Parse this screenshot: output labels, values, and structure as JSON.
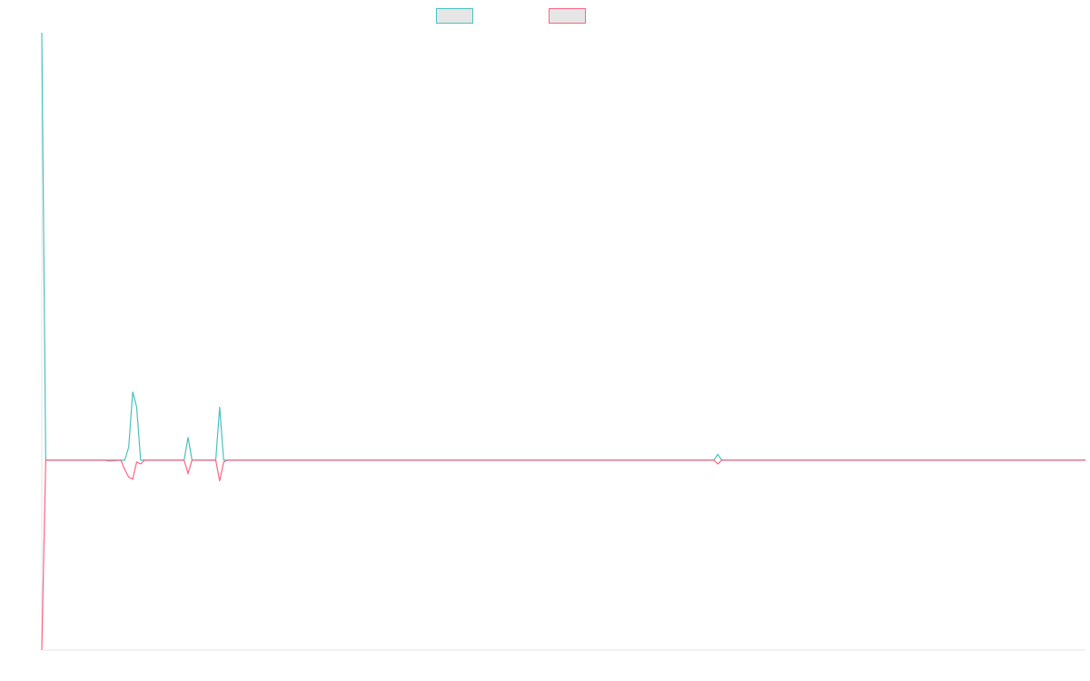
{
  "chart_data": {
    "type": "line",
    "title": "",
    "xlabel": "",
    "ylabel": "",
    "grid": false,
    "legend_placement": "top",
    "x_count": 265,
    "ylim": [
      -1.0,
      2.25
    ],
    "series": [
      {
        "name": "",
        "color": "#4bc0c0",
        "fill": "#e6e6e6",
        "points": [
          [
            0,
            2.25
          ],
          [
            1,
            0
          ],
          [
            21,
            0
          ],
          [
            22,
            0.07
          ],
          [
            23,
            0.36
          ],
          [
            24,
            0.28
          ],
          [
            25,
            0
          ],
          [
            36,
            0
          ],
          [
            37,
            0.12
          ],
          [
            38,
            0
          ],
          [
            44,
            0
          ],
          [
            45,
            0.28
          ],
          [
            46,
            0
          ],
          [
            170,
            0
          ],
          [
            171,
            0.03
          ],
          [
            172,
            0
          ],
          [
            264,
            0
          ]
        ]
      },
      {
        "name": "",
        "color": "#ff6384",
        "fill": "#e6e6e6",
        "points": [
          [
            0,
            -1.0
          ],
          [
            1,
            0
          ],
          [
            16,
            0
          ],
          [
            17,
            -0.005
          ],
          [
            20,
            0
          ],
          [
            21,
            -0.05
          ],
          [
            22,
            -0.09
          ],
          [
            23,
            -0.1
          ],
          [
            24,
            -0.01
          ],
          [
            25,
            -0.02
          ],
          [
            26,
            0
          ],
          [
            36,
            0
          ],
          [
            37,
            -0.07
          ],
          [
            38,
            0
          ],
          [
            44,
            0
          ],
          [
            45,
            -0.11
          ],
          [
            46,
            -0.01
          ],
          [
            47,
            0
          ],
          [
            170,
            0
          ],
          [
            171,
            -0.02
          ],
          [
            172,
            0
          ],
          [
            264,
            0
          ]
        ]
      }
    ]
  }
}
